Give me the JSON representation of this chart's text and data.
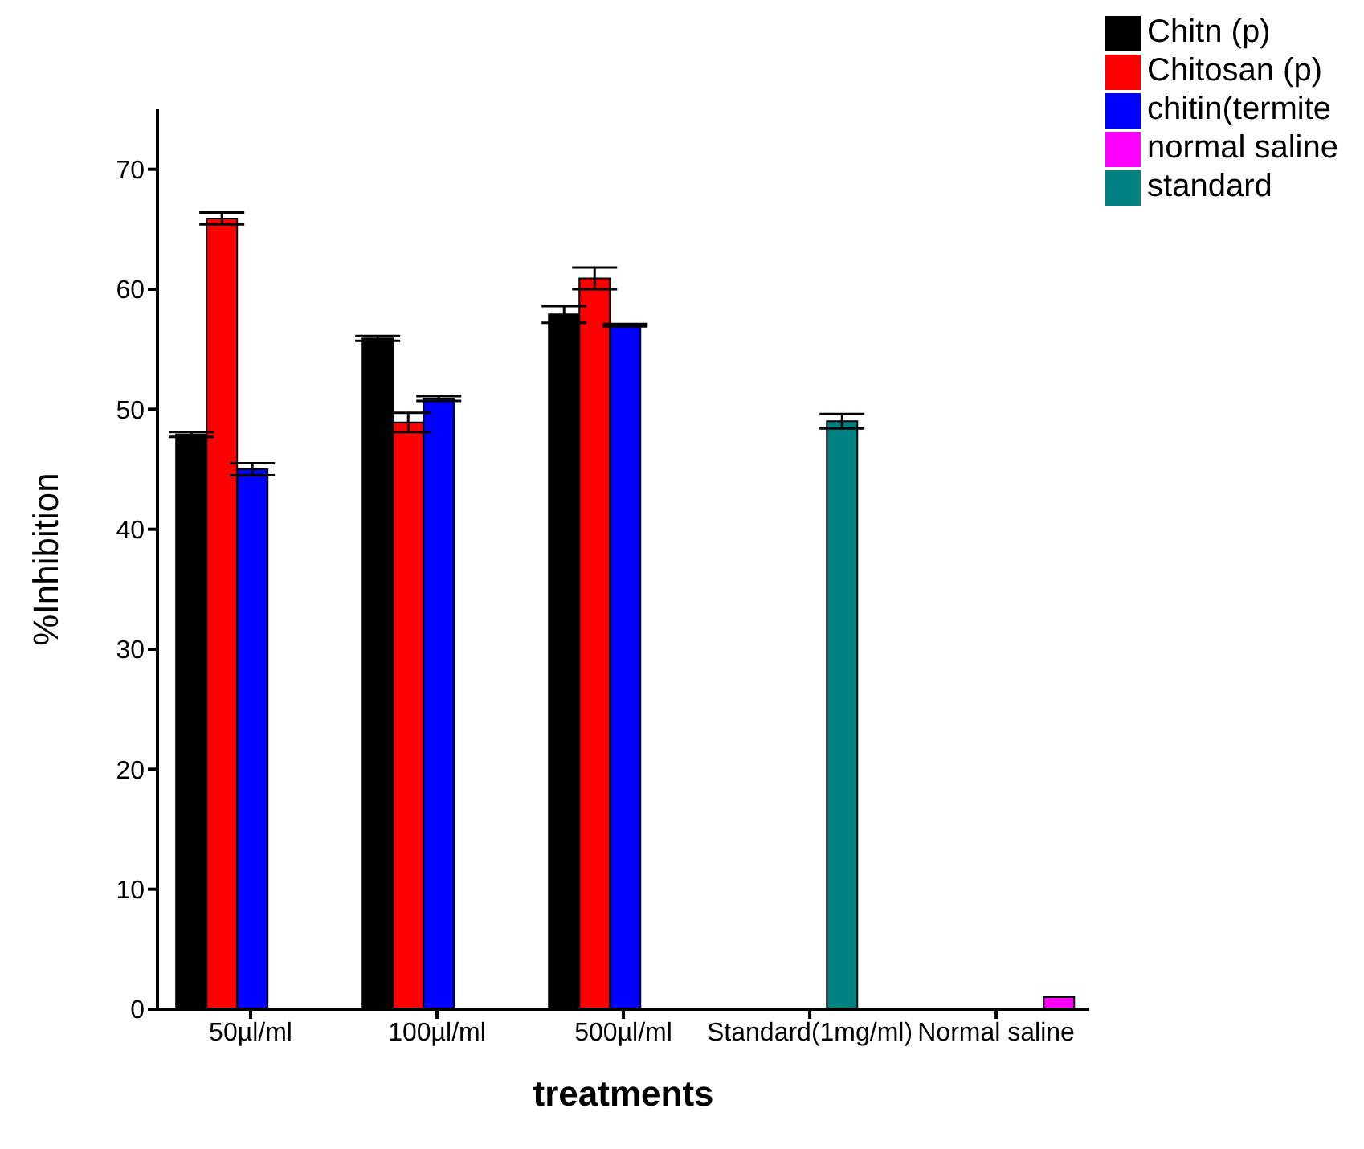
{
  "chart_data": {
    "type": "bar",
    "xlabel": "treatments",
    "ylabel": "%Inhibition",
    "categories": [
      "50µl/ml",
      "100µl/ml",
      "500µl/ml",
      "Standard(1mg/ml)",
      "Normal saline"
    ],
    "series": [
      {
        "name": "Chitn (p)",
        "color": "#000000",
        "values": [
          47.9,
          55.9,
          57.9,
          null,
          null
        ],
        "errors": [
          0.2,
          0.2,
          0.7,
          null,
          null
        ]
      },
      {
        "name": "Chitosan (p)",
        "color": "#ff0000",
        "values": [
          65.9,
          48.9,
          60.9,
          null,
          null
        ],
        "errors": [
          0.5,
          0.8,
          0.9,
          null,
          null
        ]
      },
      {
        "name": "chitin(termite",
        "color": "#0000ff",
        "values": [
          45.0,
          50.9,
          57.0,
          null,
          null
        ],
        "errors": [
          0.5,
          0.2,
          0.1,
          null,
          null
        ]
      },
      {
        "name": "standard",
        "color": "#008080",
        "values": [
          null,
          null,
          null,
          49.0,
          null
        ],
        "errors": [
          null,
          null,
          null,
          0.6,
          null
        ]
      },
      {
        "name": "normal saline",
        "color": "#ff00ff",
        "values": [
          null,
          null,
          null,
          null,
          1.0
        ]
      }
    ],
    "ylim": [
      0,
      75
    ],
    "yticks": [
      0,
      10,
      20,
      30,
      40,
      50,
      60,
      70
    ],
    "legend": "top right"
  }
}
